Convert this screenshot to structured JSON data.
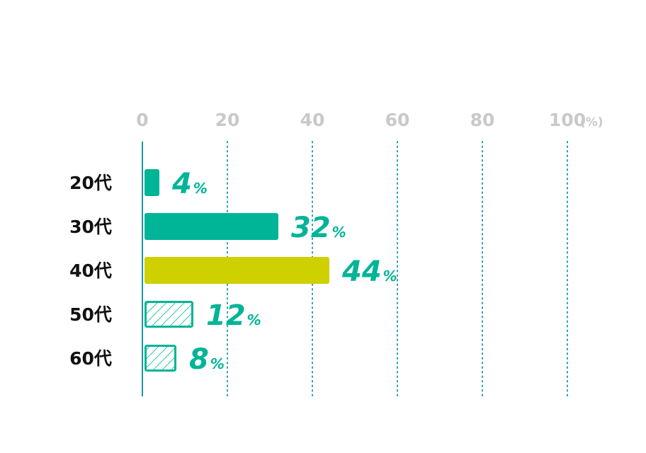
{
  "chart_data": {
    "type": "bar",
    "orientation": "horizontal",
    "categories": [
      "20代",
      "30代",
      "40代",
      "50代",
      "60代"
    ],
    "values": [
      4,
      32,
      44,
      12,
      8
    ],
    "value_unit": "%",
    "xlim": [
      0,
      100
    ],
    "x_ticks": [
      "0",
      "20",
      "40",
      "60",
      "80",
      "100"
    ],
    "x_unit_label": "(%)",
    "grid": "vertical dotted",
    "bar_styles": [
      "solid",
      "solid",
      "solid",
      "hatched",
      "hatched"
    ],
    "colors": {
      "teal": "#00b497",
      "highlight": "#cfd000",
      "axis": "#1a9aa6",
      "grid": "#2a9db0",
      "tick_label": "#c9c9c9",
      "category_label": "#111111",
      "value_label": "#00b497"
    },
    "bar_colors": [
      "#00b497",
      "#00b497",
      "#cfd000",
      "#00b497",
      "#00b497"
    ]
  }
}
